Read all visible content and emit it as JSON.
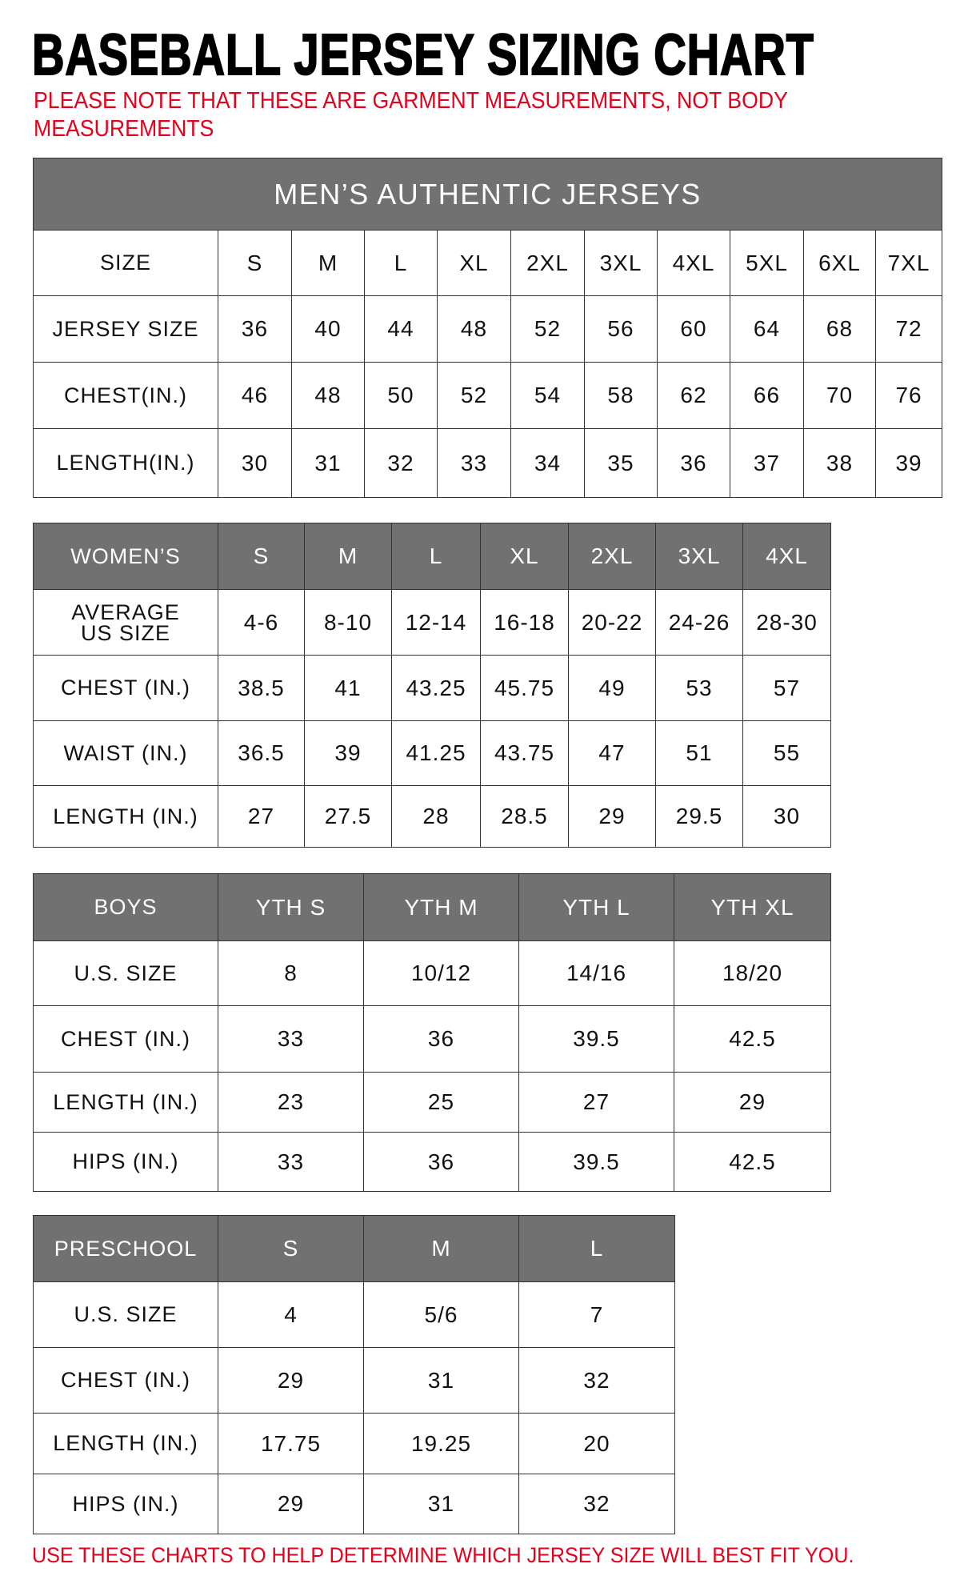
{
  "title": "BASEBALL JERSEY SIZING CHART",
  "note_line1": "PLEASE NOTE THAT THESE ARE GARMENT MEASUREMENTS, NOT BODY",
  "note_line2": "MEASUREMENTS",
  "footer": "USE THESE CHARTS TO HELP DETERMINE WHICH JERSEY SIZE WILL BEST FIT YOU.",
  "colors": {
    "header_bg": "#717171",
    "note": "#e5001c"
  },
  "tables": [
    {
      "name": "mens",
      "banner": "MEN’S AUTHENTIC JERSEYS",
      "header": [
        "SIZE",
        "S",
        "M",
        "L",
        "XL",
        "2XL",
        "3XL",
        "4XL",
        "5XL",
        "6XL",
        "7XL"
      ],
      "rows": [
        [
          "JERSEY SIZE",
          "36",
          "40",
          "44",
          "48",
          "52",
          "56",
          "60",
          "64",
          "68",
          "72"
        ],
        [
          "CHEST(IN.)",
          "46",
          "48",
          "50",
          "52",
          "54",
          "58",
          "62",
          "66",
          "70",
          "76"
        ],
        [
          "LENGTH(IN.)",
          "30",
          "31",
          "32",
          "33",
          "34",
          "35",
          "36",
          "37",
          "38",
          "39"
        ]
      ]
    },
    {
      "name": "womens",
      "header": [
        "WOMEN’S",
        "S",
        "M",
        "L",
        "XL",
        "2XL",
        "3XL",
        "4XL"
      ],
      "rows": [
        [
          "AVERAGE US SIZE",
          "4-6",
          "8-10",
          "12-14",
          "16-18",
          "20-22",
          "24-26",
          "28-30"
        ],
        [
          "CHEST (IN.)",
          "38.5",
          "41",
          "43.25",
          "45.75",
          "49",
          "53",
          "57"
        ],
        [
          "WAIST (IN.)",
          "36.5",
          "39",
          "41.25",
          "43.75",
          "47",
          "51",
          "55"
        ],
        [
          "LENGTH (IN.)",
          "27",
          "27.5",
          "28",
          "28.5",
          "29",
          "29.5",
          "30"
        ]
      ]
    },
    {
      "name": "boys",
      "header": [
        "BOYS",
        "YTH S",
        "YTH M",
        "YTH L",
        "YTH XL"
      ],
      "rows": [
        [
          "U.S. SIZE",
          "8",
          "10/12",
          "14/16",
          "18/20"
        ],
        [
          "CHEST (IN.)",
          "33",
          "36",
          "39.5",
          "42.5"
        ],
        [
          "LENGTH (IN.)",
          "23",
          "25",
          "27",
          "29"
        ],
        [
          "HIPS (IN.)",
          "33",
          "36",
          "39.5",
          "42.5"
        ]
      ]
    },
    {
      "name": "preschool",
      "header": [
        "PRESCHOOL",
        "S",
        "M",
        "L"
      ],
      "rows": [
        [
          "U.S. SIZE",
          "4",
          "5/6",
          "7"
        ],
        [
          "CHEST (IN.)",
          "29",
          "31",
          "32"
        ],
        [
          "LENGTH (IN.)",
          "17.75",
          "19.25",
          "20"
        ],
        [
          "HIPS (IN.)",
          "29",
          "31",
          "32"
        ]
      ]
    }
  ]
}
